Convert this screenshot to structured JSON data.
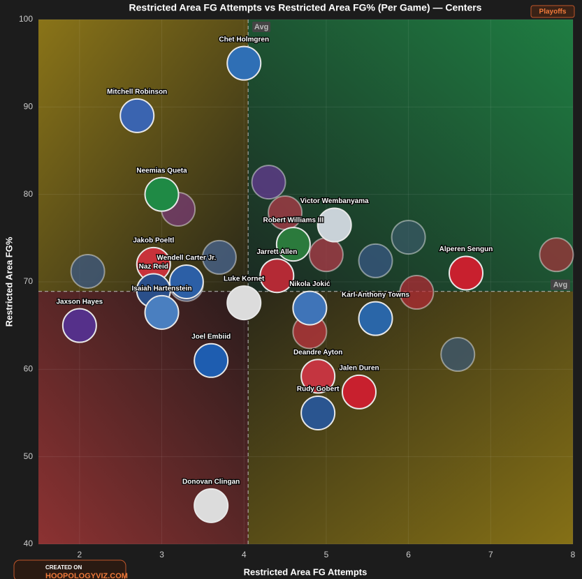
{
  "chart_data": {
    "type": "scatter",
    "title": "Restricted Area FG Attempts vs Restricted Area FG% (Per Game) — Centers",
    "badge": "Playoffs",
    "x_label": "Restricted Area FG Attempts",
    "y_label": "Restricted Area FG%",
    "avg_label": "Avg",
    "x_avg": 4.05,
    "y_avg": 68.9,
    "xlim": [
      1.5,
      8
    ],
    "ylim": [
      40,
      100
    ],
    "xticks": [
      2,
      3,
      4,
      5,
      6,
      7,
      8
    ],
    "yticks": [
      40,
      50,
      60,
      70,
      80,
      90,
      100
    ],
    "grid": true,
    "footer": {
      "created_on": "CREATED ON",
      "site": "HOOPOLOGYVIZ.COM"
    },
    "series": [
      {
        "labels": [
          "Chet Holmgren",
          "Mitchell Robinson",
          "Neemias Queta",
          "Victor Wembanyama",
          "Robert Williams III",
          "Jakob Poeltl",
          "Wendell Carter Jr.",
          "Jarrett Allen",
          "Alperen Sengun",
          "Naz Reid",
          "Isaiah Hartenstein",
          "Luke Kornet",
          "Nikola Jokić",
          "Karl-Anthony Towns",
          "Jaxson Hayes",
          "Joel Embiid",
          "Deandre Ayton",
          "Jalen Duren",
          "Rudy Gobert",
          "Donovan Clingan"
        ],
        "x": [
          4.0,
          2.7,
          3.0,
          5.1,
          4.6,
          2.9,
          3.3,
          4.4,
          6.7,
          2.9,
          3.0,
          4.0,
          4.8,
          5.6,
          2.0,
          3.6,
          4.9,
          5.4,
          4.9,
          3.6
        ],
        "values": [
          95.0,
          89.0,
          80.0,
          76.5,
          74.3,
          72.0,
          70.0,
          70.7,
          71.0,
          69.0,
          66.5,
          67.6,
          67.0,
          65.8,
          65.0,
          61.0,
          59.2,
          57.4,
          55.0,
          44.4
        ],
        "colors": [
          "#2f6fb5",
          "#3a64b0",
          "#1f8a45",
          "#c9d2d8",
          "#2b7a3c",
          "#c8323a",
          "#2c5fa6",
          "#b42a35",
          "#c8202e",
          "#2a4f8a",
          "#4a7fc0",
          "#dcdcdc",
          "#3f74b8",
          "#2a66a8",
          "#55308a",
          "#1e5db0",
          "#c43540",
          "#c8202e",
          "#2a5590",
          "#dcdcdc"
        ]
      },
      {
        "x": [
          4.3,
          3.2,
          4.5,
          6.0,
          3.7,
          5.6,
          5.0,
          2.1,
          6.1,
          7.8,
          6.6,
          4.8,
          3.3
        ],
        "values": [
          81.4,
          78.3,
          77.9,
          75.1,
          72.8,
          72.4,
          73.1,
          71.2,
          68.8,
          73.1,
          61.7,
          64.3,
          69.7
        ],
        "colors": [
          "#6a3a9a",
          "#7a3a7a",
          "#b83a4a",
          "#3a5a6a",
          "#4a6a9a",
          "#3a5a8a",
          "#b83a4a",
          "#3a5a8a",
          "#b82a35",
          "#a8323a",
          "#3a5a7a",
          "#c43540",
          "#4a6a9a"
        ]
      }
    ]
  }
}
